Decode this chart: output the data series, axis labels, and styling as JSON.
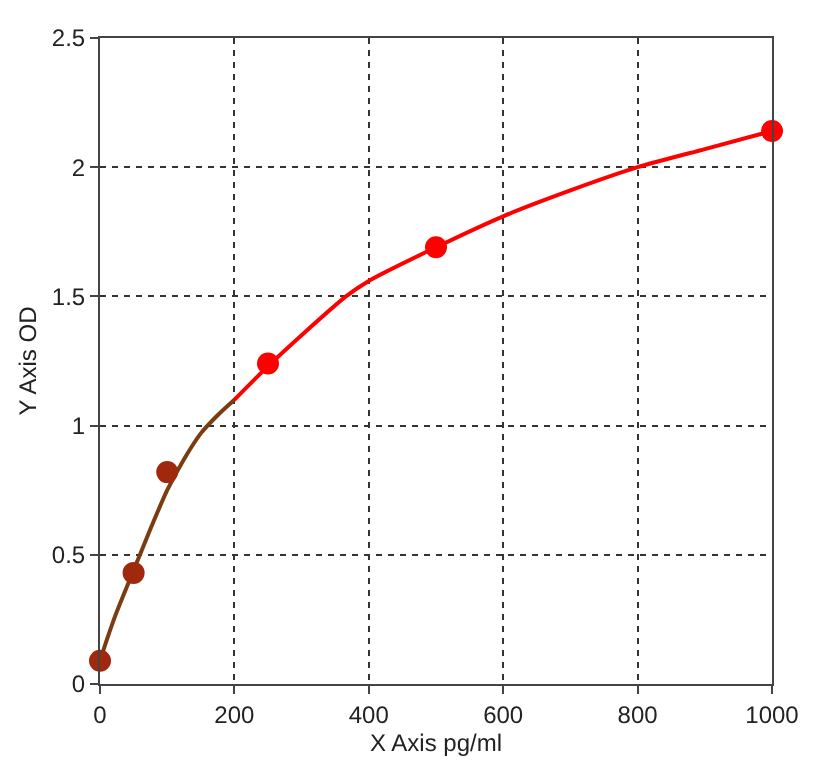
{
  "chart_data": {
    "type": "scatter",
    "xlabel": "X Axis pg/ml",
    "ylabel": "Y Axis OD",
    "xlim": [
      0,
      1000
    ],
    "xticks": [
      0,
      200,
      400,
      600,
      800,
      1000
    ],
    "ylim": [
      0,
      2.5
    ],
    "yticks": [
      0,
      0.5,
      1,
      1.5,
      2,
      2.5
    ],
    "grid": true,
    "marker": "circle",
    "series": [
      {
        "type": "line",
        "color": "#7a3c10",
        "marker": "none",
        "x": [
          0,
          10,
          25,
          50,
          75,
          100,
          125,
          150,
          175,
          200
        ],
        "values": [
          0.09,
          0.17,
          0.28,
          0.44,
          0.6,
          0.75,
          0.87,
          0.97,
          1.04,
          1.1
        ]
      },
      {
        "type": "line",
        "color": "#ff0000",
        "marker": "none",
        "x": [
          200,
          250,
          300,
          366,
          400,
          500,
          600,
          700,
          800,
          900,
          1000
        ],
        "values": [
          1.1,
          1.23,
          1.35,
          1.5,
          1.56,
          1.69,
          1.81,
          1.91,
          2.0,
          2.07,
          2.14
        ]
      },
      {
        "x": [
          0,
          50,
          100,
          250,
          500,
          1000
        ],
        "values": [
          0.09,
          0.43,
          0.82,
          1.24,
          1.69,
          2.14
        ],
        "colors": [
          "#a0280c",
          "#a0280c",
          "#a0280c",
          "#ff0000",
          "#ff0000",
          "#ff0000"
        ]
      }
    ]
  }
}
